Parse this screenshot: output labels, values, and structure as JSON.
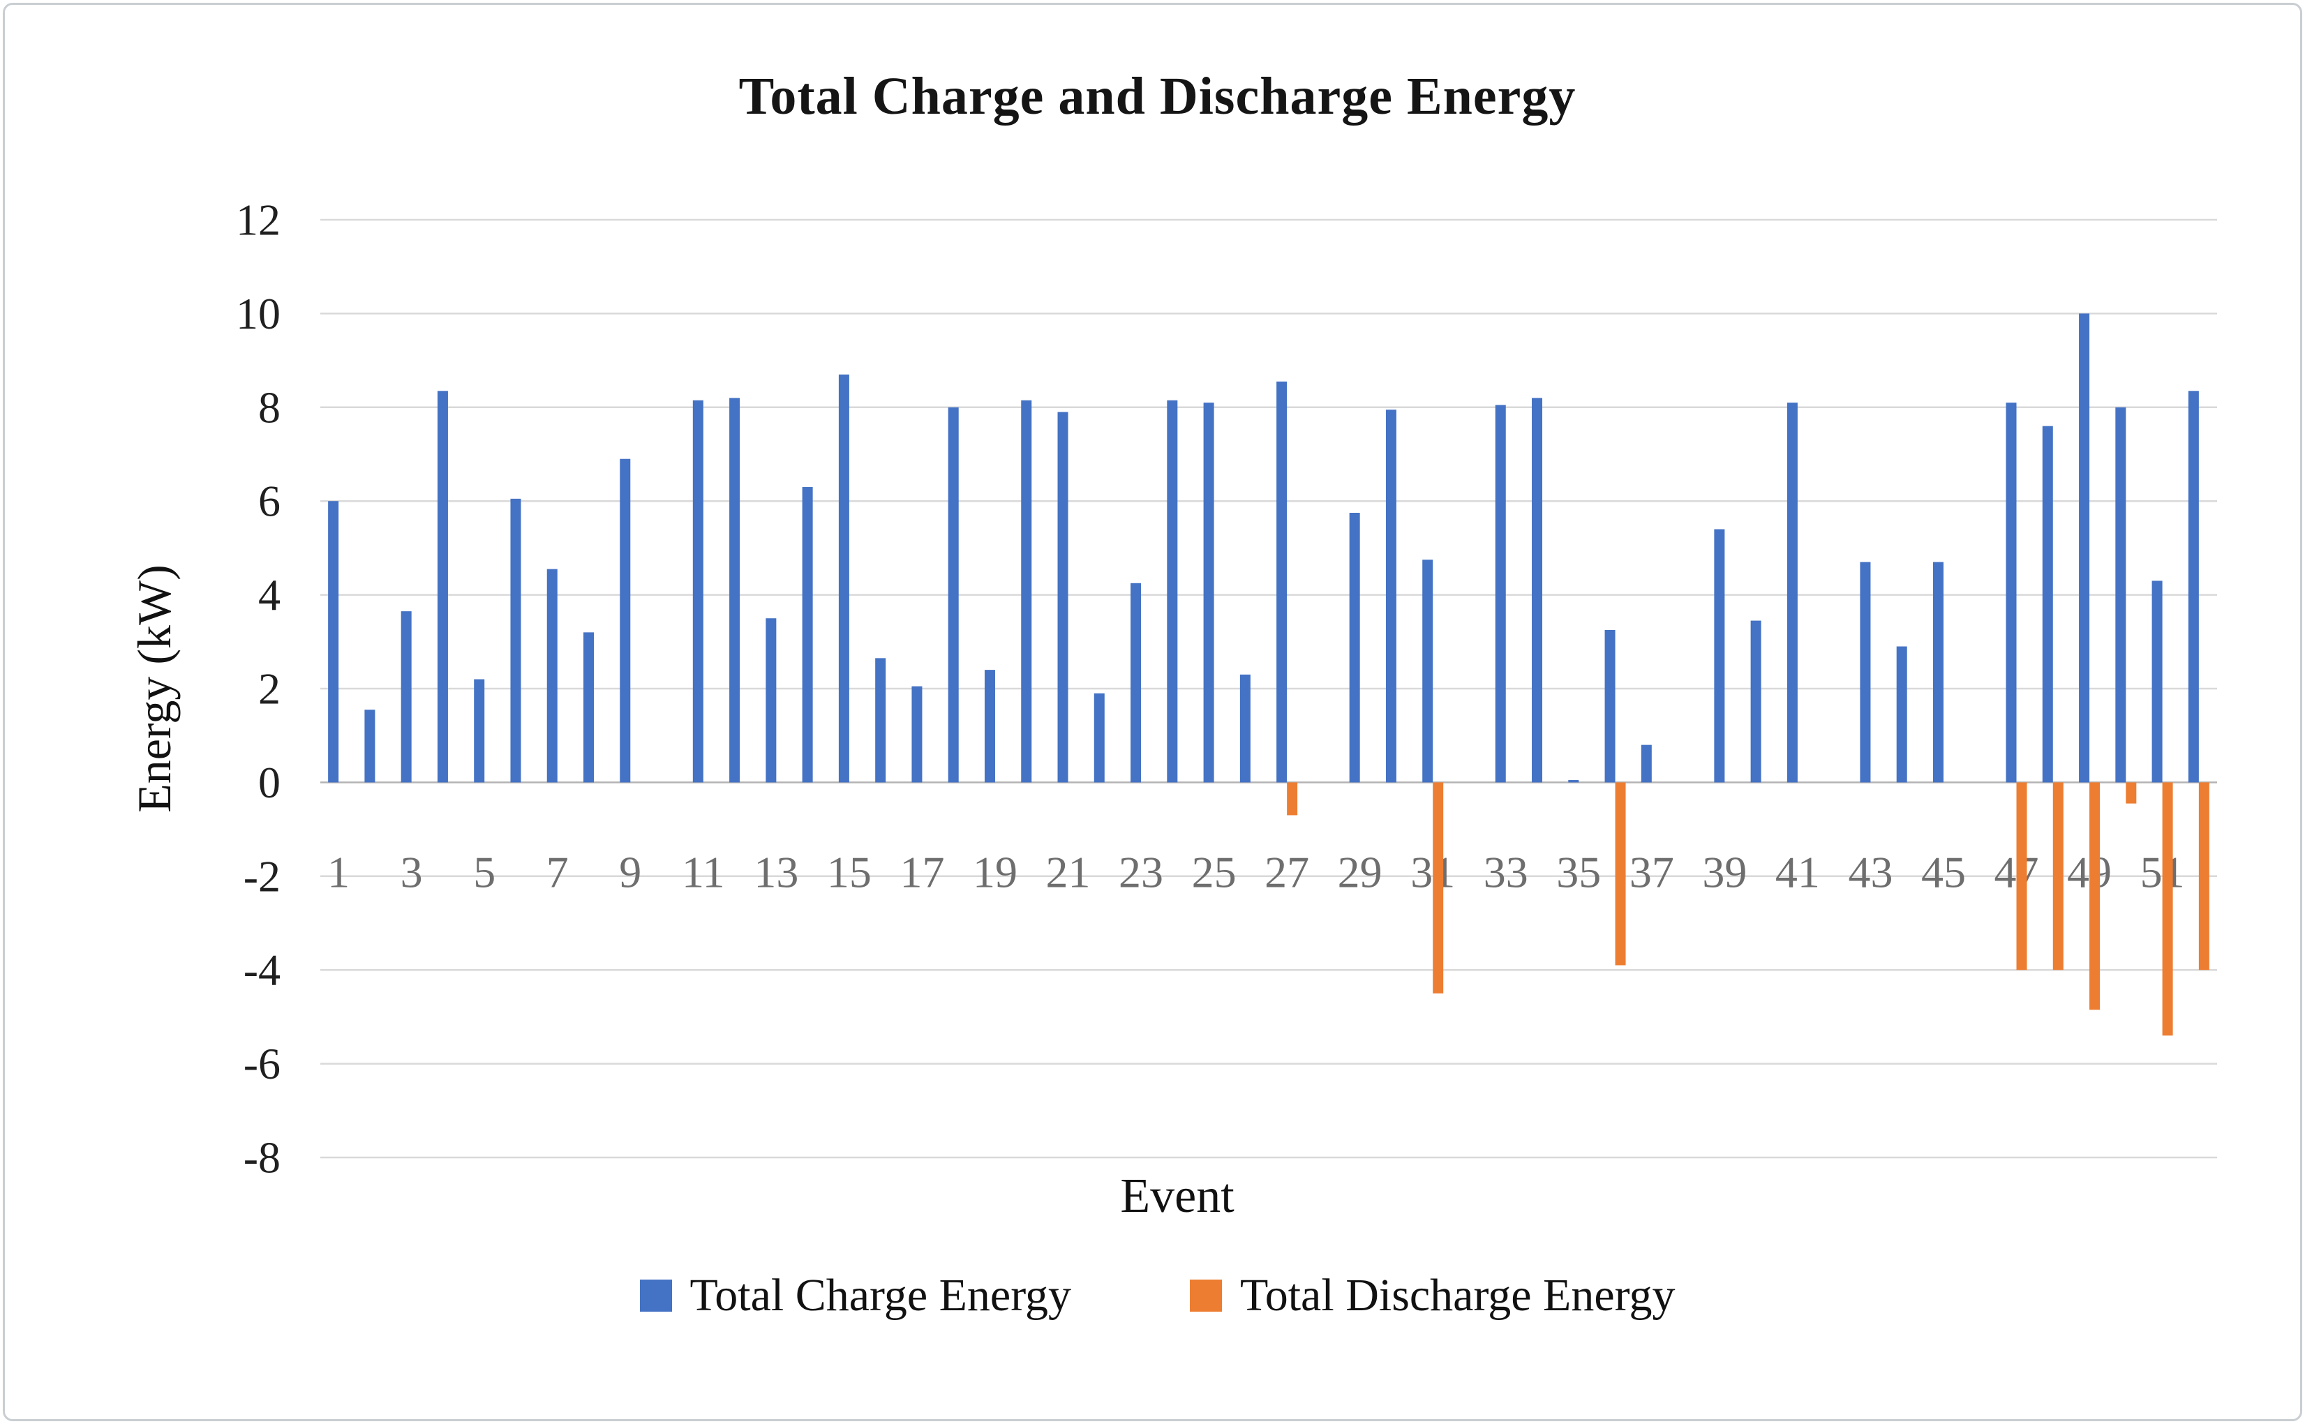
{
  "chart_data": {
    "type": "bar",
    "title": "Total Charge and Discharge Energy",
    "xlabel": "Event",
    "ylabel": "Energy (kW)",
    "ylim": [
      -8,
      12
    ],
    "ytick_interval": 2,
    "yticks": [
      12,
      10,
      8,
      6,
      4,
      2,
      0,
      -2,
      -4,
      -6,
      -8
    ],
    "xtick_labels_shown": [
      1,
      3,
      5,
      7,
      9,
      11,
      13,
      15,
      17,
      19,
      21,
      23,
      25,
      27,
      29,
      31,
      33,
      35,
      37,
      39,
      41,
      43,
      45,
      47,
      49,
      51
    ],
    "categories": [
      1,
      2,
      3,
      4,
      5,
      6,
      7,
      8,
      9,
      10,
      11,
      12,
      13,
      14,
      15,
      16,
      17,
      18,
      19,
      20,
      21,
      22,
      23,
      24,
      25,
      26,
      27,
      28,
      29,
      30,
      31,
      32,
      33,
      34,
      35,
      36,
      37,
      38,
      39,
      40,
      41,
      42,
      43,
      44,
      45,
      46,
      47,
      48,
      49,
      50,
      51,
      52
    ],
    "grid": true,
    "legend_position": "bottom",
    "series": [
      {
        "name": "Total Charge Energy",
        "color": "#4472C4",
        "values": [
          6.0,
          1.55,
          3.65,
          8.35,
          2.2,
          6.05,
          4.55,
          3.2,
          6.9,
          0,
          8.15,
          8.2,
          3.5,
          6.3,
          8.7,
          2.65,
          2.05,
          8.0,
          2.4,
          8.15,
          7.9,
          1.9,
          4.25,
          8.15,
          8.1,
          2.3,
          8.55,
          0,
          5.75,
          7.95,
          4.75,
          0,
          8.05,
          8.2,
          0.05,
          3.25,
          0.8,
          0,
          5.4,
          3.45,
          8.1,
          0,
          4.7,
          2.9,
          4.7,
          0,
          8.1,
          7.6,
          10.0,
          8.0,
          4.3,
          8.35
        ]
      },
      {
        "name": "Total Discharge Energy",
        "color": "#ED7D31",
        "values": [
          0,
          0,
          0,
          0,
          0,
          0,
          0,
          0,
          0,
          0,
          0,
          0,
          0,
          0,
          0,
          0,
          0,
          0,
          0,
          0,
          0,
          0,
          0,
          0,
          0,
          0,
          -0.7,
          0,
          0,
          0,
          -4.5,
          0,
          0,
          0,
          0,
          -3.9,
          0,
          0,
          0,
          0,
          0,
          0,
          0,
          0,
          0,
          0,
          -4.0,
          -4.0,
          -4.85,
          -0.45,
          -5.4,
          -4.0
        ]
      }
    ]
  },
  "style_colors": {
    "gridline": "#d9d9d9",
    "zero_axis_line": "#b3b3b3",
    "y_tick_label": "#1f1f1f",
    "x_tick_label": "#6e6e6e"
  }
}
